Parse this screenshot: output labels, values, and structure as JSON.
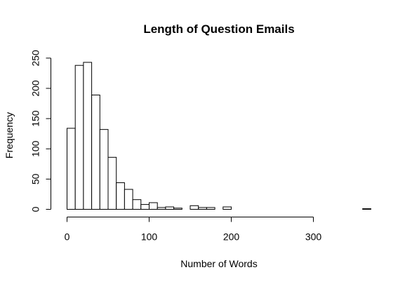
{
  "chart_data": {
    "type": "bar",
    "subtype": "histogram",
    "title": "Length of Question Emails",
    "xlabel": "Number of Words",
    "ylabel": "Frequency",
    "bin_width": 10,
    "bins": [
      {
        "start": 0,
        "end": 10,
        "count": 134
      },
      {
        "start": 10,
        "end": 20,
        "count": 238
      },
      {
        "start": 20,
        "end": 30,
        "count": 243
      },
      {
        "start": 30,
        "end": 40,
        "count": 189
      },
      {
        "start": 40,
        "end": 50,
        "count": 132
      },
      {
        "start": 50,
        "end": 60,
        "count": 86
      },
      {
        "start": 60,
        "end": 70,
        "count": 44
      },
      {
        "start": 70,
        "end": 80,
        "count": 33
      },
      {
        "start": 80,
        "end": 90,
        "count": 16
      },
      {
        "start": 90,
        "end": 100,
        "count": 8
      },
      {
        "start": 100,
        "end": 110,
        "count": 11
      },
      {
        "start": 110,
        "end": 120,
        "count": 3
      },
      {
        "start": 120,
        "end": 130,
        "count": 4
      },
      {
        "start": 130,
        "end": 140,
        "count": 2
      },
      {
        "start": 140,
        "end": 150,
        "count": 0
      },
      {
        "start": 150,
        "end": 160,
        "count": 6
      },
      {
        "start": 160,
        "end": 170,
        "count": 3
      },
      {
        "start": 170,
        "end": 180,
        "count": 3
      },
      {
        "start": 180,
        "end": 190,
        "count": 0
      },
      {
        "start": 190,
        "end": 200,
        "count": 4
      },
      {
        "start": 200,
        "end": 210,
        "count": 0
      },
      {
        "start": 210,
        "end": 220,
        "count": 0
      },
      {
        "start": 220,
        "end": 230,
        "count": 0
      },
      {
        "start": 230,
        "end": 240,
        "count": 0
      },
      {
        "start": 240,
        "end": 250,
        "count": 0
      },
      {
        "start": 250,
        "end": 260,
        "count": 0
      },
      {
        "start": 260,
        "end": 270,
        "count": 0
      },
      {
        "start": 270,
        "end": 280,
        "count": 0
      },
      {
        "start": 280,
        "end": 290,
        "count": 0
      },
      {
        "start": 290,
        "end": 300,
        "count": 0
      },
      {
        "start": 300,
        "end": 310,
        "count": 0
      },
      {
        "start": 310,
        "end": 320,
        "count": 0
      },
      {
        "start": 320,
        "end": 330,
        "count": 0
      },
      {
        "start": 330,
        "end": 340,
        "count": 0
      },
      {
        "start": 340,
        "end": 350,
        "count": 0
      },
      {
        "start": 350,
        "end": 360,
        "count": 0
      },
      {
        "start": 360,
        "end": 370,
        "count": 1
      }
    ],
    "xlim": [
      0,
      370
    ],
    "ylim": [
      0,
      250
    ],
    "xticks": [
      0,
      100,
      200,
      300
    ],
    "yticks": [
      0,
      50,
      100,
      150,
      200,
      250
    ],
    "grid": false,
    "legend": "none",
    "colors": {
      "bar_fill": "#ffffff",
      "bar_stroke": "#000000"
    }
  }
}
